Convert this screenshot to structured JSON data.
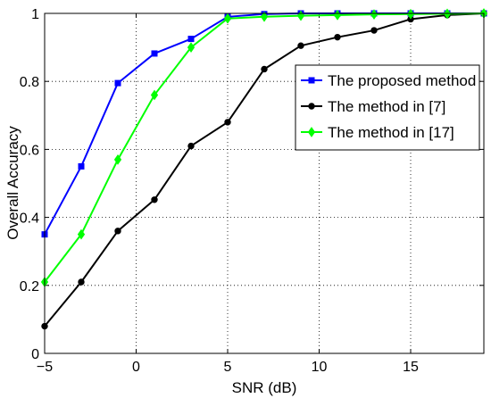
{
  "chart_data": {
    "type": "line",
    "title": "",
    "xlabel": "SNR (dB)",
    "ylabel": "Overall Accuracy",
    "xlim": [
      -5,
      19
    ],
    "ylim": [
      0,
      1
    ],
    "xticks": [
      -5,
      0,
      5,
      10,
      15
    ],
    "xtick_labels": [
      "−5",
      "0",
      "5",
      "10",
      "15"
    ],
    "yticks": [
      0,
      0.2,
      0.4,
      0.6,
      0.8,
      1
    ],
    "ytick_labels": [
      "0",
      "0.2",
      "0.4",
      "0.6",
      "0.8",
      "1"
    ],
    "grid": true,
    "legend_position": "top-right",
    "x": [
      -5,
      -3,
      -1,
      1,
      3,
      5,
      7,
      9,
      11,
      13,
      15,
      17,
      19
    ],
    "series": [
      {
        "name": "The proposed method",
        "color": "#0000ff",
        "marker": "square",
        "values": [
          0.35,
          0.55,
          0.795,
          0.882,
          0.925,
          0.99,
          0.998,
          1.0,
          1.0,
          1.0,
          1.0,
          1.0,
          1.0
        ]
      },
      {
        "name": "The method in [7]",
        "color": "#000000",
        "marker": "circle",
        "values": [
          0.08,
          0.21,
          0.36,
          0.452,
          0.61,
          0.68,
          0.836,
          0.905,
          0.93,
          0.95,
          0.983,
          0.995,
          1.0
        ]
      },
      {
        "name": "The method in [17]",
        "color": "#00ff00",
        "marker": "diamond",
        "values": [
          0.21,
          0.35,
          0.57,
          0.76,
          0.9,
          0.985,
          0.99,
          0.993,
          0.995,
          0.997,
          0.998,
          0.999,
          1.0
        ]
      }
    ]
  }
}
